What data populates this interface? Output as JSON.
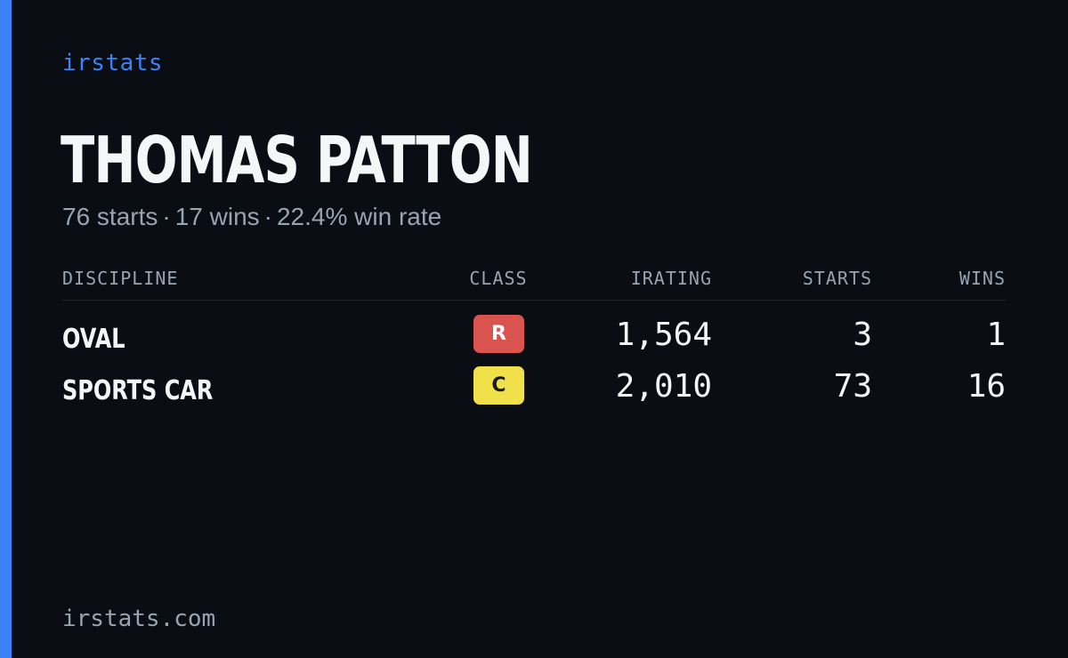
{
  "brand": "irstats",
  "player": {
    "name": "THOMAS PATTON",
    "starts_text": "76 starts",
    "wins_text": "17 wins",
    "win_rate_text": "22.4% win rate",
    "separator": "·"
  },
  "table": {
    "headers": {
      "discipline": "DISCIPLINE",
      "class": "CLASS",
      "irating": "IRATING",
      "starts": "STARTS",
      "wins": "WINS"
    },
    "rows": [
      {
        "discipline": "OVAL",
        "class": "R",
        "class_color": "#d9534f",
        "class_text_color": "#ffffff",
        "irating": "1,564",
        "starts": "3",
        "wins": "1"
      },
      {
        "discipline": "SPORTS CAR",
        "class": "C",
        "class_color": "#f0e04a",
        "class_text_color": "#1a1a1a",
        "irating": "2,010",
        "starts": "73",
        "wins": "16"
      }
    ]
  },
  "footer": {
    "url": "irstats.com"
  },
  "colors": {
    "background": "#0a0d14",
    "accent": "#3b82f6",
    "text_primary": "#f5f6f8",
    "text_muted": "#9aa3b2"
  }
}
